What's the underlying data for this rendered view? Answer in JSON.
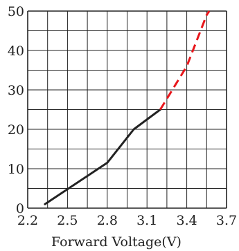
{
  "chart_data": {
    "type": "line",
    "title": "",
    "xlabel": "Forward Voltage(V)",
    "ylabel": "",
    "xlim": [
      2.2,
      3.7
    ],
    "ylim": [
      0,
      50
    ],
    "x_ticks": [
      2.2,
      2.5,
      2.8,
      3.1,
      3.4,
      3.7
    ],
    "x_tick_labels": [
      "2.2",
      "2.5",
      "2.8",
      "3.1",
      "3.4",
      "3.7"
    ],
    "y_ticks": [
      0,
      10,
      20,
      30,
      40,
      50
    ],
    "y_tick_labels": [
      "0",
      "10",
      "20",
      "30",
      "40",
      "50"
    ],
    "grid": true,
    "x_grid_step": 0.15,
    "y_grid_step": 5,
    "series": [
      {
        "style": "solid",
        "color": "#222222",
        "points": [
          [
            2.33,
            1
          ],
          [
            2.8,
            11.5
          ],
          [
            3.0,
            20
          ],
          [
            3.2,
            25
          ]
        ]
      },
      {
        "style": "dashed",
        "color": "#e8161b",
        "points": [
          [
            3.2,
            25
          ],
          [
            3.4,
            36
          ],
          [
            3.55,
            49
          ],
          [
            3.57,
            50
          ]
        ]
      }
    ]
  }
}
